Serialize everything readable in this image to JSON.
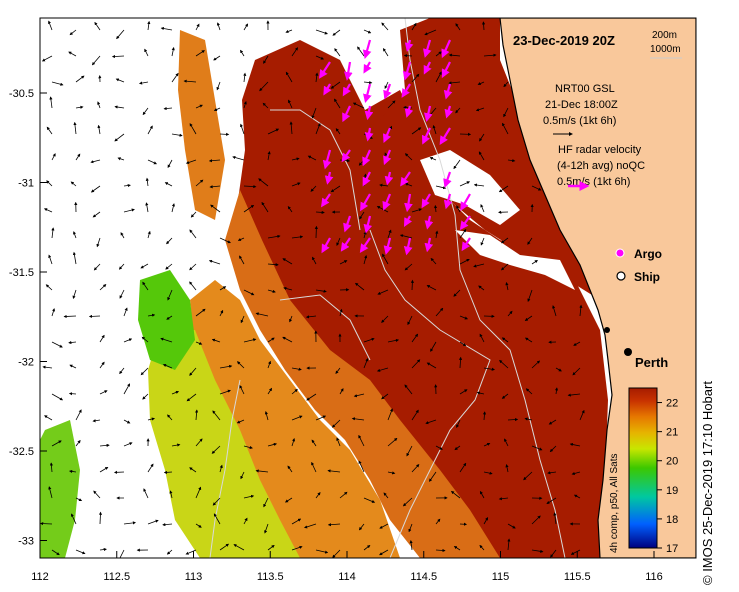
{
  "map": {
    "title": "23-Dec-2019 20Z",
    "depth_legend": [
      "200m",
      "1000m"
    ],
    "current_legend": {
      "model_name": "NRT00 GSL",
      "model_time": "21-Dec 18:00Z",
      "model_scale": "0.5m/s (1kt 6h)",
      "radar_line1": "HF radar velocity",
      "radar_line2": "(4-12h avg) noQC",
      "radar_scale": "0.5m/s (1kt 6h)"
    },
    "markers": {
      "argo_label": "Argo",
      "ship_label": "Ship",
      "city_label": "Perth"
    },
    "lat_ticks": [
      "-30.5",
      "-31",
      "-31.5",
      "-32",
      "-32.5",
      "-33"
    ],
    "lon_ticks": [
      "112",
      "112.5",
      "113",
      "113.5",
      "114",
      "114.5",
      "115",
      "115.5",
      "116"
    ],
    "colorbar": {
      "label": "4h comp, p50, All Sats",
      "ticks": [
        "22",
        "21",
        "20",
        "19",
        "18",
        "17"
      ],
      "range": [
        17,
        22.5
      ]
    },
    "colors": {
      "land": "#f9c89b",
      "hot": "#a61c00",
      "radar_arrow": "#ff00ff"
    },
    "credit": "© IMOS 25-Dec-2019 17:10 Hobart"
  }
}
